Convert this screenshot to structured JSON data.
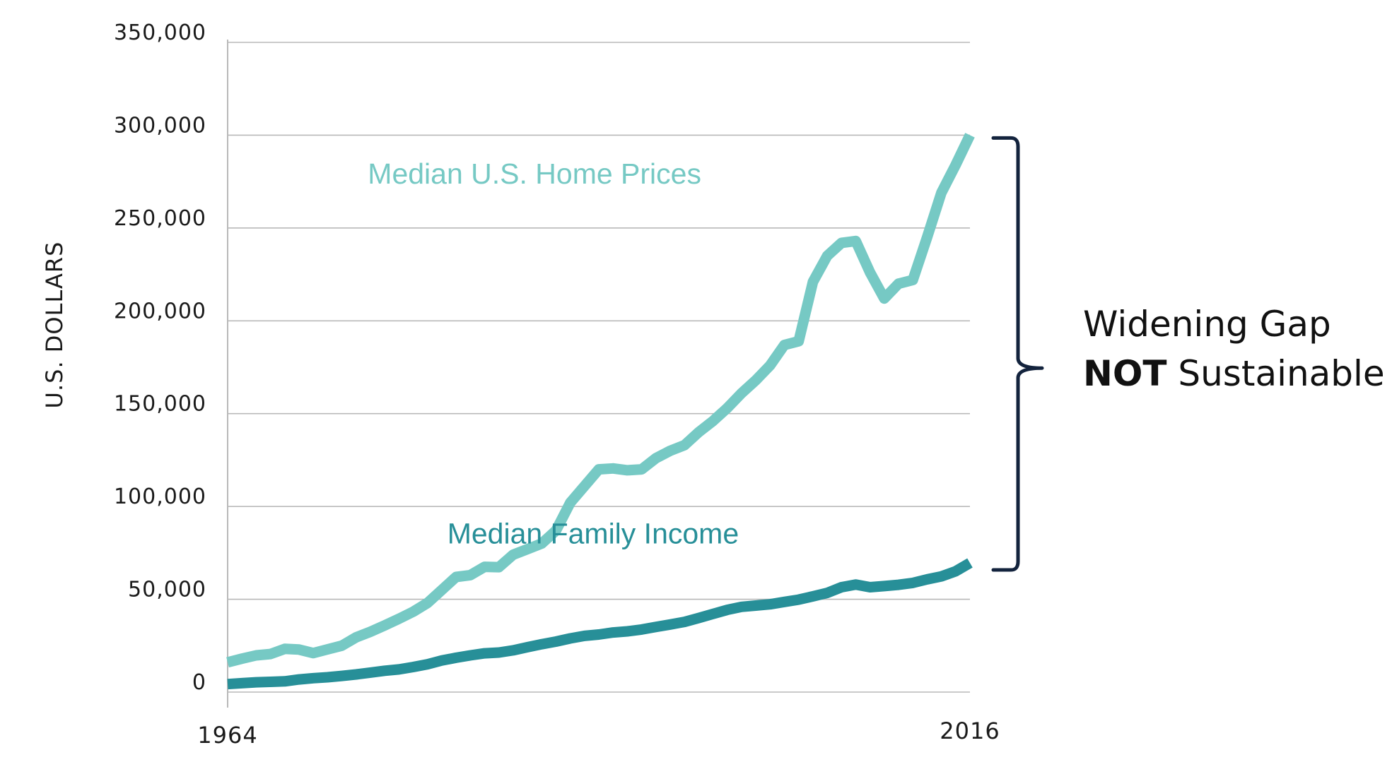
{
  "chart_data": {
    "type": "line",
    "title": "",
    "xlabel": "",
    "ylabel": "U.S. DOLLARS",
    "xlim": [
      1964,
      2016
    ],
    "ylim": [
      0,
      350000
    ],
    "x_tick_labels": [
      "1964",
      "2016"
    ],
    "y_ticks": [
      0,
      50000,
      100000,
      150000,
      200000,
      250000,
      300000,
      350000
    ],
    "y_tick_labels": [
      "0",
      "50,000",
      "100,000",
      "150,000",
      "200,000",
      "250,000",
      "300,000",
      "350,000"
    ],
    "grid": true,
    "series": [
      {
        "name": "Median U.S. Home Prices",
        "label": "Median U.S. Home Prices",
        "color": "#76c9c4",
        "x": [
          1964,
          1965,
          1966,
          1967,
          1968,
          1969,
          1970,
          1971,
          1972,
          1973,
          1974,
          1975,
          1976,
          1977,
          1978,
          1979,
          1980,
          1981,
          1982,
          1983,
          1984,
          1985,
          1986,
          1987,
          1988,
          1989,
          1990,
          1991,
          1992,
          1993,
          1994,
          1995,
          1996,
          1997,
          1998,
          1999,
          2000,
          2001,
          2002,
          2003,
          2004,
          2005,
          2006,
          2007,
          2008,
          2009,
          2010,
          2011,
          2012,
          2013,
          2014,
          2015,
          2016
        ],
        "values": [
          16000,
          18000,
          19800,
          20500,
          23300,
          22900,
          21000,
          23000,
          25000,
          29500,
          32500,
          35900,
          39500,
          43300,
          48000,
          55000,
          62000,
          63000,
          67500,
          67300,
          74000,
          77000,
          80000,
          87000,
          102000,
          111000,
          120000,
          120500,
          119500,
          120000,
          126000,
          130000,
          133000,
          140000,
          146000,
          153000,
          161000,
          168000,
          176000,
          187000,
          189000,
          221000,
          235000,
          242000,
          243000,
          226000,
          212000,
          220000,
          222000,
          245000,
          269000,
          284000,
          300000
        ],
        "label_xy": [
          1985.5,
          274000
        ]
      },
      {
        "name": "Median Family Income",
        "label": "Median Family Income",
        "color": "#278f98",
        "x": [
          1964,
          1965,
          1966,
          1967,
          1968,
          1969,
          1970,
          1971,
          1972,
          1973,
          1974,
          1975,
          1976,
          1977,
          1978,
          1979,
          1980,
          1981,
          1982,
          1983,
          1984,
          1985,
          1986,
          1987,
          1988,
          1989,
          1990,
          1991,
          1992,
          1993,
          1994,
          1995,
          1996,
          1997,
          1998,
          1999,
          2000,
          2001,
          2002,
          2003,
          2004,
          2005,
          2006,
          2007,
          2008,
          2009,
          2010,
          2011,
          2012,
          2013,
          2014,
          2015,
          2016
        ],
        "values": [
          4300,
          4800,
          5300,
          5500,
          5800,
          6800,
          7500,
          8000,
          8700,
          9500,
          10500,
          11500,
          12200,
          13500,
          15000,
          17000,
          18500,
          19800,
          20900,
          21300,
          22500,
          24200,
          25800,
          27200,
          28900,
          30300,
          31000,
          32100,
          32700,
          33700,
          35100,
          36400,
          37800,
          39900,
          42100,
          44300,
          45900,
          46600,
          47300,
          48600,
          49800,
          51600,
          53400,
          56500,
          57900,
          56500,
          57100,
          57800,
          58800,
          60700,
          62300,
          65100,
          69600
        ],
        "label_xy": [
          1989.6,
          80000
        ]
      }
    ]
  },
  "annotation": {
    "line1": "Widening Gap",
    "line2_bold": "NOT",
    "line2_rest": " Sustainable"
  }
}
